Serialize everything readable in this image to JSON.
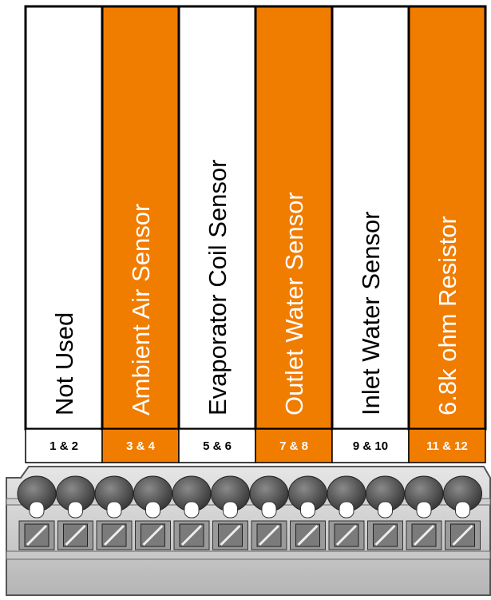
{
  "columns": [
    {
      "label": "Not Used",
      "pins": "1 & 2"
    },
    {
      "label": "Ambient Air Sensor",
      "pins": "3 & 4"
    },
    {
      "label": "Evaporator Coil Sensor",
      "pins": "5 & 6"
    },
    {
      "label": "Outlet Water Sensor",
      "pins": "7 & 8"
    },
    {
      "label": "Inlet Water Sensor",
      "pins": "9 & 10"
    },
    {
      "label": "6.8k ohm Resistor",
      "pins": "11 & 12"
    }
  ]
}
